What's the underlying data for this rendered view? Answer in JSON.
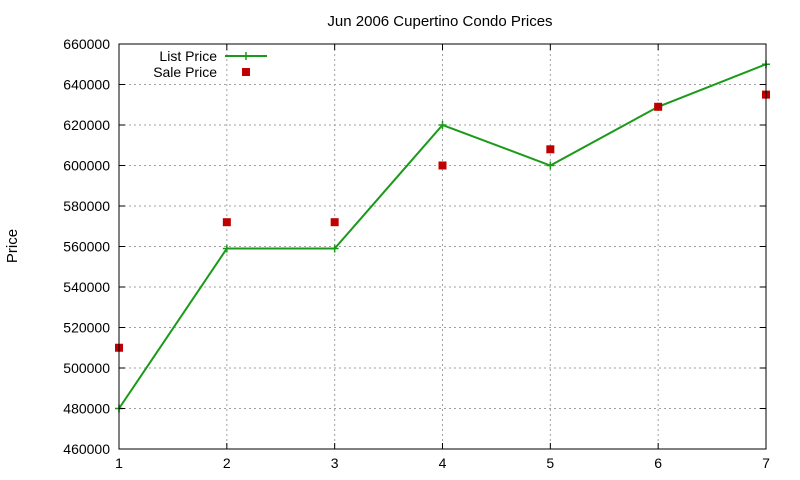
{
  "chart_data": {
    "type": "line",
    "title": "Jun 2006 Cupertino Condo Prices",
    "xlabel": "",
    "ylabel": "Price",
    "xlim": [
      1,
      7
    ],
    "ylim": [
      460000,
      660000
    ],
    "x_ticks": [
      1,
      2,
      3,
      4,
      5,
      6,
      7
    ],
    "y_ticks": [
      460000,
      480000,
      500000,
      520000,
      540000,
      560000,
      580000,
      600000,
      620000,
      640000,
      660000
    ],
    "grid": true,
    "legend_position": "top-left",
    "series": [
      {
        "name": "List Price",
        "style": "line+cross-markers",
        "color": "#1a9a1a",
        "x": [
          1,
          2,
          3,
          4,
          5,
          6,
          7
        ],
        "values": [
          480000,
          559000,
          559000,
          620000,
          600000,
          629000,
          650000
        ]
      },
      {
        "name": "Sale Price",
        "style": "square-markers",
        "color": "#c00000",
        "x": [
          1,
          2,
          3,
          4,
          5,
          6,
          7
        ],
        "values": [
          510000,
          572000,
          572000,
          600000,
          608000,
          629000,
          635000
        ]
      }
    ]
  }
}
